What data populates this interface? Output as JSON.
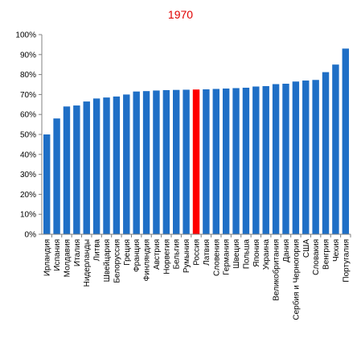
{
  "chart_data": {
    "type": "bar",
    "title": "1970",
    "xlabel": "",
    "ylabel": "",
    "ylim": [
      0,
      100
    ],
    "y_ticks": [
      "0%",
      "10%",
      "20%",
      "30%",
      "40%",
      "50%",
      "60%",
      "70%",
      "80%",
      "90%",
      "100%"
    ],
    "grid": false,
    "legend": "none",
    "colors": {
      "bar": "#1f6fc6",
      "highlight": "#ff0000",
      "title": "#e00000",
      "axis": "#808080"
    },
    "highlight_category": "Россия",
    "categories": [
      "Ирландия",
      "Испания",
      "Молдавия",
      "Италия",
      "Нидерланды",
      "Литва",
      "Швейцария",
      "Белоруссия",
      "Греция",
      "Франция",
      "Финляндия",
      "Австрия",
      "Норвегия",
      "Бельгия",
      "Румыния",
      "Россия",
      "Латвия",
      "Словения",
      "Германия",
      "Швеция",
      "Польша",
      "Япония",
      "Украина",
      "Великобритания",
      "Дания",
      "Сербия и Черногория",
      "США",
      "Словакия",
      "Венгрия",
      "Чехия",
      "Португалия"
    ],
    "values": [
      50,
      58,
      64,
      64.5,
      66.5,
      68,
      68.5,
      69,
      70,
      71.5,
      71.7,
      72,
      72.2,
      72.3,
      72.4,
      72.5,
      72.6,
      72.8,
      73,
      73.2,
      73.4,
      74,
      74.2,
      75.2,
      75.4,
      76.5,
      77,
      77.3,
      81.2,
      85,
      93
    ]
  }
}
